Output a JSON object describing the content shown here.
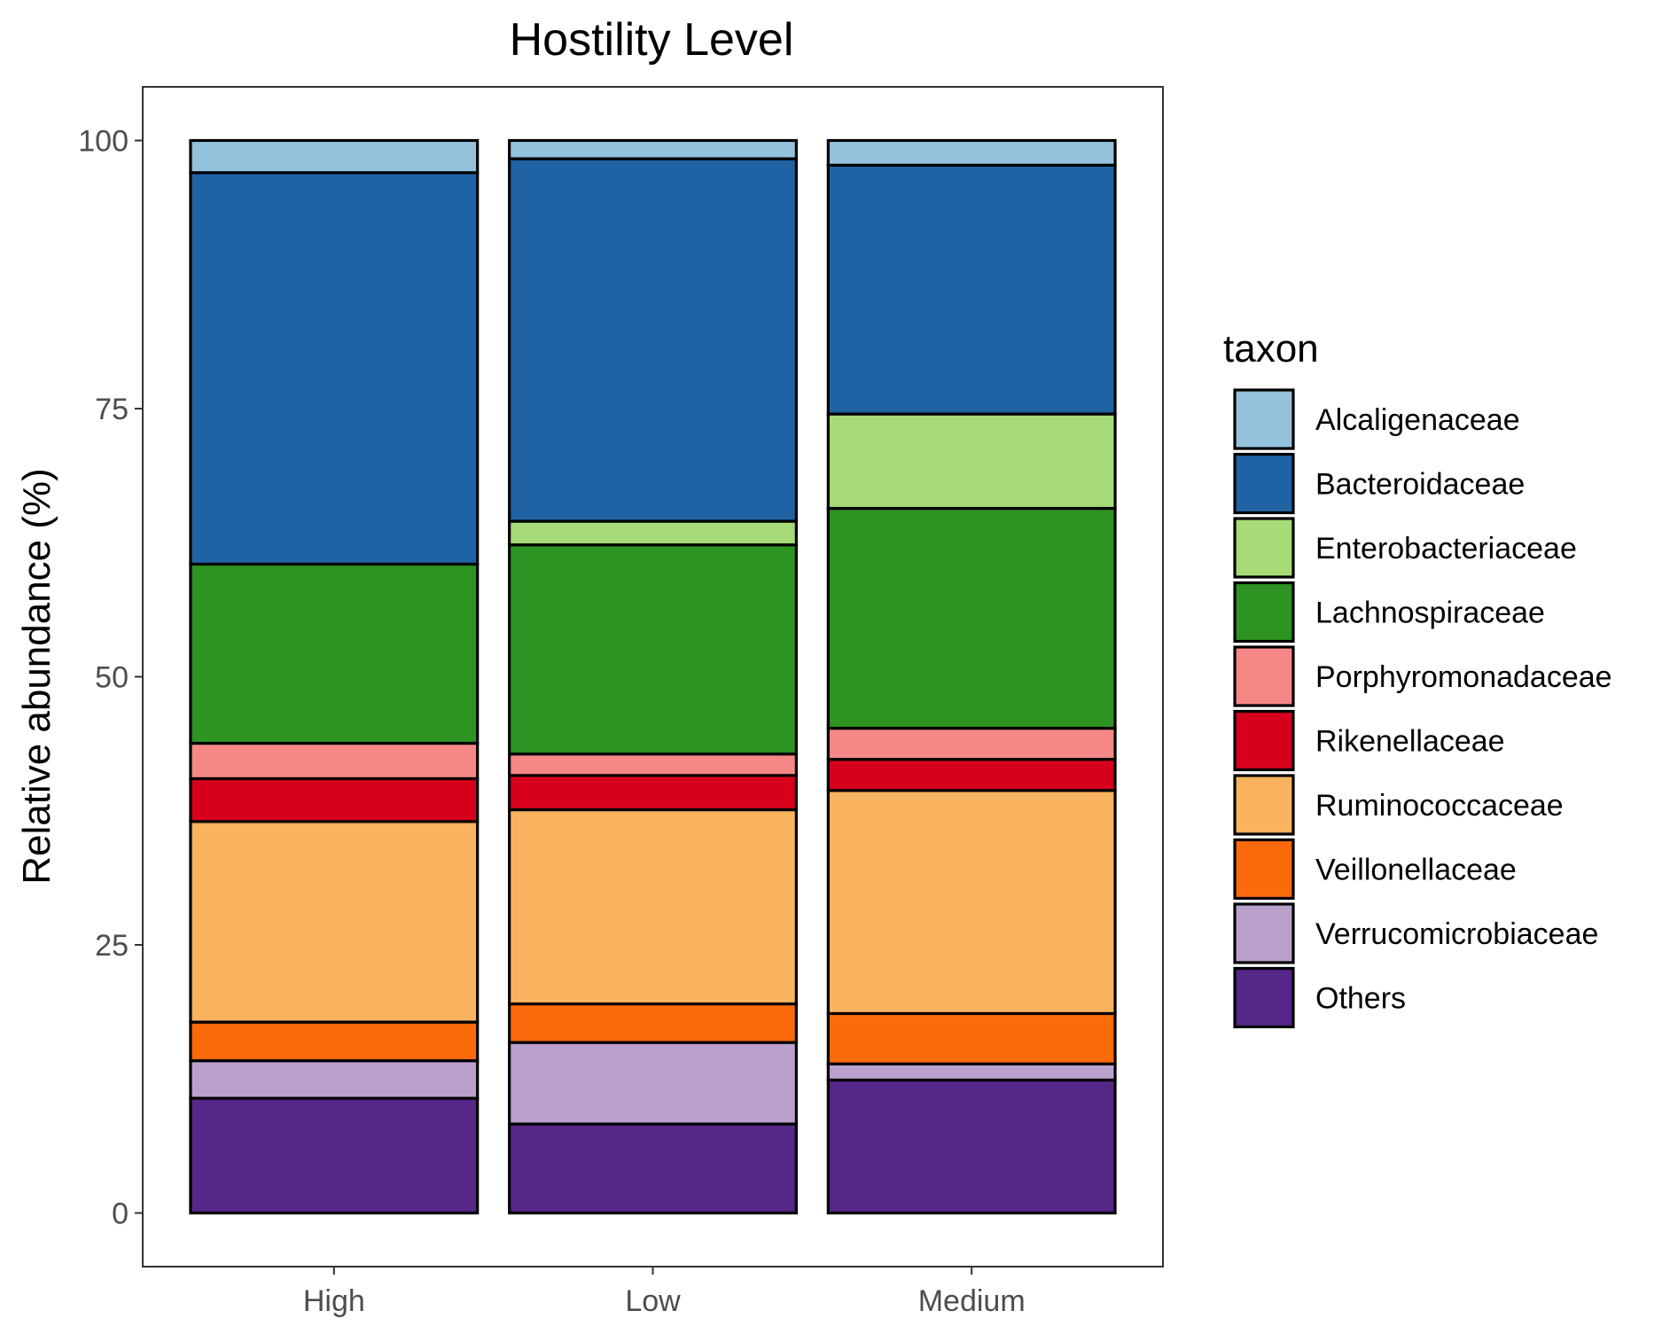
{
  "chart_data": {
    "type": "bar",
    "stacked": true,
    "title": "Hostility Level",
    "xlabel": "",
    "ylabel": "Relative abundance (%)",
    "ylim": [
      -5,
      105
    ],
    "yticks": [
      0,
      25,
      50,
      75,
      100
    ],
    "grid": false,
    "legend_title": "taxon",
    "legend_position": "right",
    "categories": [
      "High",
      "Low",
      "Medium"
    ],
    "series": [
      {
        "name": "Others",
        "color": "#542788",
        "values": [
          10.7,
          8.3,
          12.4
        ]
      },
      {
        "name": "Verrucomicrobiaceae",
        "color": "#BCA0CC",
        "values": [
          3.5,
          7.6,
          1.5
        ]
      },
      {
        "name": "Veillonellaceae",
        "color": "#FB6A0A",
        "values": [
          3.6,
          3.6,
          4.7
        ]
      },
      {
        "name": "Ruminococcaceae",
        "color": "#F9B25E",
        "values": [
          18.7,
          18.1,
          20.8
        ]
      },
      {
        "name": "Rikenellaceae",
        "color": "#D7001C",
        "values": [
          4.0,
          3.2,
          2.9
        ]
      },
      {
        "name": "Porphyromonadaceae",
        "color": "#F68787",
        "values": [
          3.3,
          2.0,
          2.9
        ]
      },
      {
        "name": "Lachnospiraceae",
        "color": "#2D9322",
        "values": [
          16.7,
          19.5,
          20.5
        ]
      },
      {
        "name": "Enterobacteriaceae",
        "color": "#A6DB77",
        "values": [
          0.0,
          2.2,
          8.8
        ]
      },
      {
        "name": "Bacteroidaceae",
        "color": "#1F63A5",
        "values": [
          36.5,
          33.8,
          23.2
        ]
      },
      {
        "name": "Alcaligenaceae",
        "color": "#94C2DD",
        "values": [
          3.0,
          1.7,
          2.3
        ]
      }
    ],
    "legend_order": [
      "Alcaligenaceae",
      "Bacteroidaceae",
      "Enterobacteriaceae",
      "Lachnospiraceae",
      "Porphyromonadaceae",
      "Rikenellaceae",
      "Ruminococcaceae",
      "Veillonellaceae",
      "Verrucomicrobiaceae",
      "Others"
    ]
  }
}
